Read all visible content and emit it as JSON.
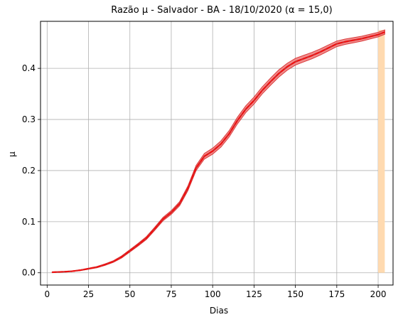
{
  "chart_data": {
    "type": "line",
    "title": "Razão μ - Salvador - BA - 18/10/2020 (α = 15,0)",
    "xlabel": "Dias",
    "ylabel": "μ",
    "xlim": [
      -4,
      209
    ],
    "ylim": [
      -0.024,
      0.492
    ],
    "xticks": [
      0,
      25,
      50,
      75,
      100,
      125,
      150,
      175,
      200
    ],
    "xtick_labels": [
      "0",
      "25",
      "50",
      "75",
      "100",
      "125",
      "150",
      "175",
      "200"
    ],
    "yticks": [
      0.0,
      0.1,
      0.2,
      0.3,
      0.4
    ],
    "ytick_labels": [
      "0.0",
      "0.1",
      "0.2",
      "0.3",
      "0.4"
    ],
    "grid": true,
    "legend": "none",
    "colors": {
      "line": "#d62728",
      "dash": "#ee1111",
      "band": "#f08080",
      "highlight": "#ffdab0"
    },
    "highlight_region": {
      "x": [
        200,
        204
      ]
    },
    "series": [
      {
        "x": [
          3,
          10,
          15,
          20,
          25,
          30,
          35,
          40,
          45,
          50,
          55,
          60,
          65,
          70,
          75,
          80,
          85,
          90,
          95,
          100,
          105,
          110,
          115,
          120,
          125,
          130,
          135,
          140,
          145,
          150,
          155,
          160,
          165,
          170,
          175,
          180,
          185,
          190,
          195,
          200,
          204
        ],
        "y": [
          0.001,
          0.002,
          0.003,
          0.005,
          0.008,
          0.011,
          0.016,
          0.022,
          0.031,
          0.043,
          0.055,
          0.068,
          0.086,
          0.105,
          0.118,
          0.135,
          0.165,
          0.205,
          0.228,
          0.238,
          0.252,
          0.272,
          0.298,
          0.32,
          0.337,
          0.357,
          0.374,
          0.39,
          0.403,
          0.413,
          0.419,
          0.425,
          0.432,
          0.44,
          0.448,
          0.452,
          0.455,
          0.458,
          0.462,
          0.466,
          0.471
        ],
        "band_halfwidth": [
          0.0005,
          0.0005,
          0.0005,
          0.0007,
          0.001,
          0.0012,
          0.0014,
          0.0016,
          0.002,
          0.0022,
          0.0025,
          0.0028,
          0.003,
          0.0033,
          0.0036,
          0.004,
          0.0045,
          0.005,
          0.0055,
          0.0058,
          0.006,
          0.0062,
          0.0065,
          0.0066,
          0.0068,
          0.0068,
          0.007,
          0.007,
          0.0068,
          0.0066,
          0.0064,
          0.0062,
          0.006,
          0.0058,
          0.0055,
          0.0052,
          0.005,
          0.0048,
          0.0046,
          0.0044,
          0.0042
        ]
      }
    ]
  }
}
